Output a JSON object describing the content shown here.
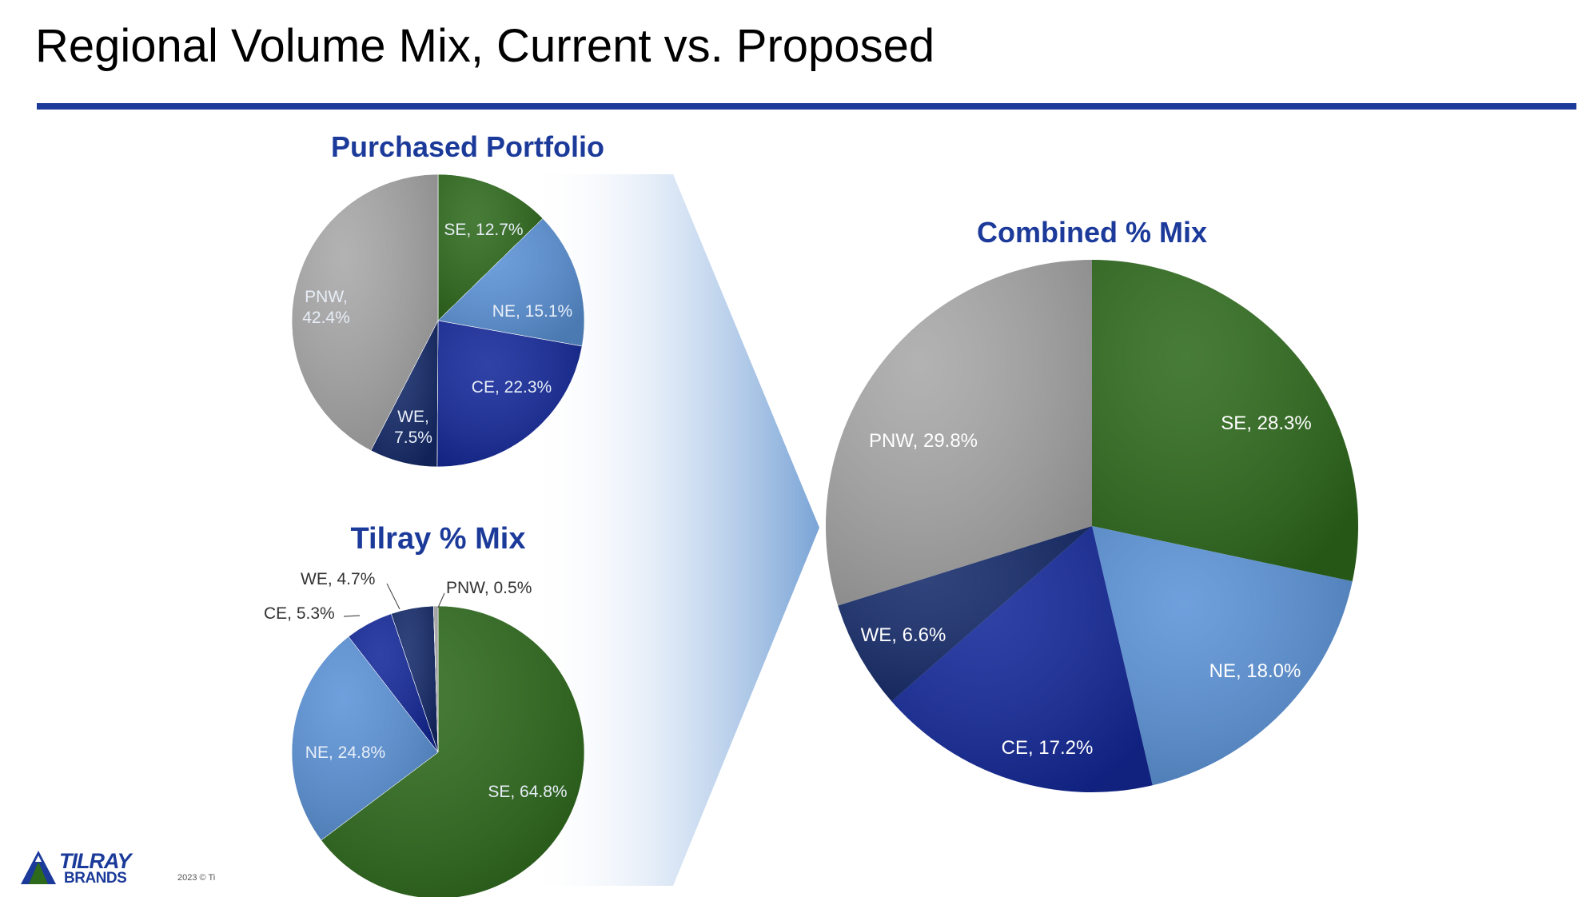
{
  "slide": {
    "title": "Regional Volume Mix, Current vs. Proposed",
    "copyright": "2023 © Ti",
    "logo_line1": "TILRAY",
    "logo_line2": "BRANDS"
  },
  "colors": {
    "SE": "#2e6a1c",
    "NE": "#5b93d8",
    "CE": "#13289a",
    "WE": "#142a6a",
    "PNW": "#a8a8a8",
    "title_blue": "#1b3a9a"
  },
  "chart_data": [
    {
      "type": "pie",
      "title": "Purchased Portfolio",
      "categories": [
        "SE",
        "NE",
        "CE",
        "WE",
        "PNW"
      ],
      "values": [
        12.7,
        15.1,
        22.3,
        7.5,
        42.4
      ],
      "labels": [
        "SE, 12.7%",
        "NE, 15.1%",
        "CE, 22.3%",
        "WE, 7.5%",
        "PNW, 42.4%"
      ]
    },
    {
      "type": "pie",
      "title": "Tilray % Mix",
      "categories": [
        "SE",
        "NE",
        "CE",
        "WE",
        "PNW"
      ],
      "values": [
        64.8,
        24.8,
        5.3,
        4.7,
        0.5
      ],
      "labels": [
        "SE, 64.8%",
        "NE, 24.8%",
        "CE, 5.3%",
        "WE, 4.7%",
        "PNW, 0.5%"
      ]
    },
    {
      "type": "pie",
      "title": "Combined % Mix",
      "categories": [
        "SE",
        "NE",
        "CE",
        "WE",
        "PNW"
      ],
      "values": [
        28.3,
        18.0,
        17.2,
        6.6,
        29.8
      ],
      "labels": [
        "SE, 28.3%",
        "NE, 18.0%",
        "CE, 17.2%",
        "WE, 6.6%",
        "PNW, 29.8%"
      ]
    }
  ]
}
